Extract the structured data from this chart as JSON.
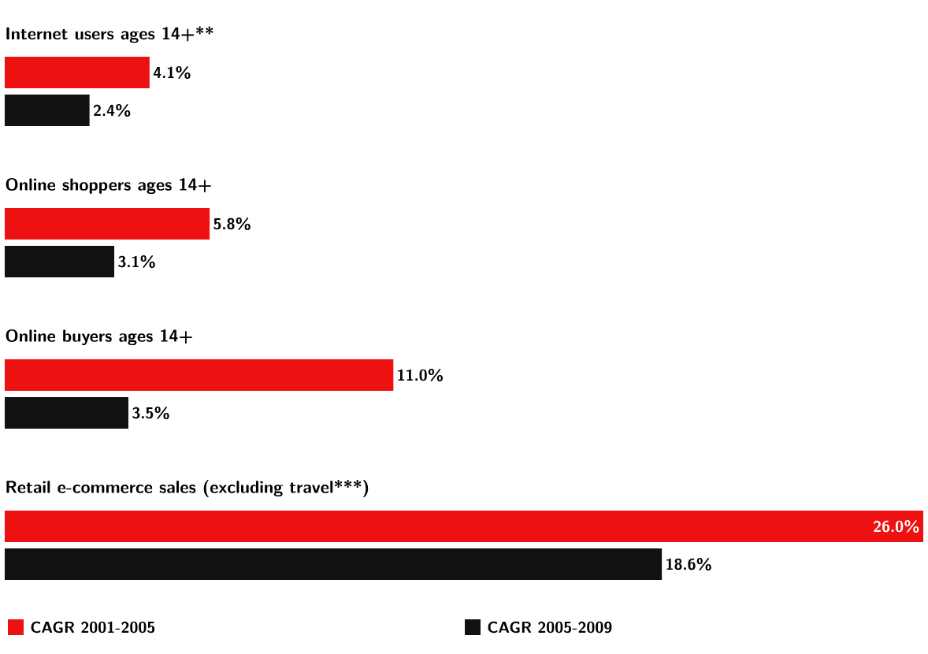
{
  "chart_data": {
    "type": "bar",
    "orientation": "horizontal",
    "legend": "bottom",
    "categories": [
      "Internet users ages 14+**",
      "Online shoppers ages 14+",
      "Online buyers ages 14+",
      "Retail e-commerce sales (excluding travel***)"
    ],
    "series": [
      {
        "name": "CAGR 2001-2005",
        "color": "#ee1111",
        "values": [
          4.1,
          5.8,
          11.0,
          26.0
        ],
        "value_labels": [
          "4.1%",
          "5.8%",
          "11.0%",
          "26.0%"
        ]
      },
      {
        "name": "CAGR 2005-2009",
        "color": "#111111",
        "values": [
          2.4,
          3.1,
          3.5,
          18.6
        ],
        "value_labels": [
          "2.4%",
          "3.1%",
          "3.5%",
          "18.6%"
        ]
      }
    ]
  }
}
